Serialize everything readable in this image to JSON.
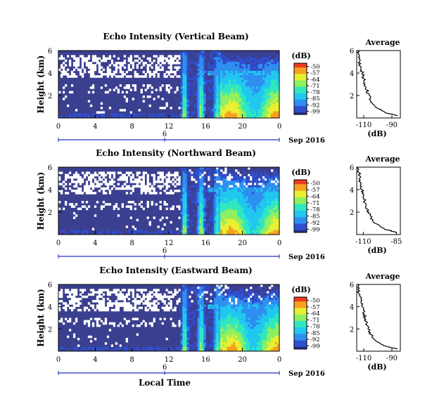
{
  "chart_data": [
    {
      "type": "heatmap",
      "title": "Echo Intensity (Vertical Beam)",
      "ylabel": "Height (km)",
      "ylim": [
        0,
        6
      ],
      "yticks": [
        "2",
        "4",
        "6"
      ],
      "xlim": [
        0,
        24
      ],
      "xticks": [
        "0",
        "4",
        "8",
        "12",
        "16",
        "20",
        "0"
      ],
      "date_marker": "6",
      "date_label": "Sep 2016",
      "colorbar": {
        "unit": "(dB)",
        "ticks": [
          "-50",
          "-57",
          "-64",
          "-71",
          "-78",
          "-85",
          "-92",
          "-99"
        ]
      },
      "profile": {
        "title": "Average",
        "xlabel": "(dB)",
        "xticks": [
          "-110",
          "-90"
        ],
        "xlim": [
          -115,
          -84
        ],
        "yticks": [
          "2",
          "4",
          "6"
        ],
        "ylim": [
          0,
          6
        ],
        "height_km": [
          0.2,
          0.5,
          1.0,
          1.5,
          2.0,
          2.5,
          3.0,
          3.5,
          4.0,
          4.5,
          5.0,
          5.5,
          6.0
        ],
        "db": [
          -86,
          -95,
          -102,
          -105,
          -106,
          -108,
          -109,
          -110,
          -111,
          -112,
          -113,
          -113,
          -114
        ]
      }
    },
    {
      "type": "heatmap",
      "title": "Echo Intensity (Northward Beam)",
      "ylabel": "Height (km)",
      "ylim": [
        0,
        6
      ],
      "yticks": [
        "2",
        "4",
        "6"
      ],
      "xlim": [
        0,
        24
      ],
      "xticks": [
        "0",
        "4",
        "8",
        "12",
        "16",
        "20",
        "0"
      ],
      "date_marker": "6",
      "date_label": "Sep 2016",
      "colorbar": {
        "unit": "(dB)",
        "ticks": [
          "-50",
          "-57",
          "-64",
          "-71",
          "-78",
          "-85",
          "-92",
          "-99"
        ]
      },
      "profile": {
        "title": "Average",
        "xlabel": "(dB)",
        "xticks": [
          "-110",
          "-85"
        ],
        "xlim": [
          -115,
          -82
        ],
        "yticks": [
          "2",
          "4",
          "6"
        ],
        "ylim": [
          0,
          6
        ],
        "height_km": [
          0.2,
          0.5,
          1.0,
          1.5,
          2.0,
          2.5,
          3.0,
          3.5,
          4.0,
          4.5,
          5.0,
          5.5,
          6.0
        ],
        "db": [
          -85,
          -94,
          -101,
          -104,
          -106,
          -108,
          -109,
          -110,
          -111,
          -112,
          -113,
          -113,
          -114
        ]
      }
    },
    {
      "type": "heatmap",
      "title": "Echo Intensity (Eastward Beam)",
      "ylabel": "Height (km)",
      "ylim": [
        0,
        6
      ],
      "yticks": [
        "2",
        "4",
        "6"
      ],
      "xlim": [
        0,
        24
      ],
      "xticks": [
        "0",
        "4",
        "8",
        "12",
        "16",
        "20",
        "0"
      ],
      "date_marker": "6",
      "date_label": "Sep 2016",
      "xlabel": "Local Time",
      "colorbar": {
        "unit": "(dB)",
        "ticks": [
          "-50",
          "-57",
          "-64",
          "-71",
          "-78",
          "-85",
          "-92",
          "-99"
        ]
      },
      "profile": {
        "title": "Average",
        "xlabel": "(dB)",
        "xticks": [
          "-110",
          "-90"
        ],
        "xlim": [
          -115,
          -84
        ],
        "yticks": [
          "2",
          "4",
          "6"
        ],
        "ylim": [
          0,
          6
        ],
        "height_km": [
          0.2,
          0.5,
          1.0,
          1.5,
          2.0,
          2.5,
          3.0,
          3.5,
          4.0,
          4.5,
          5.0,
          5.5,
          6.0
        ],
        "db": [
          -86,
          -96,
          -102,
          -105,
          -107,
          -108,
          -109,
          -110,
          -111,
          -112,
          -113,
          -114,
          -114
        ]
      }
    }
  ],
  "colors": {
    "background": "#3b3f8f",
    "colormap": [
      "#2a2a8a",
      "#2f4fd0",
      "#2f8ff0",
      "#20c8f0",
      "#30e8c0",
      "#8ff060",
      "#e8f030",
      "#f8a020",
      "#f03a20"
    ],
    "axis_blue": "#2030c0"
  }
}
